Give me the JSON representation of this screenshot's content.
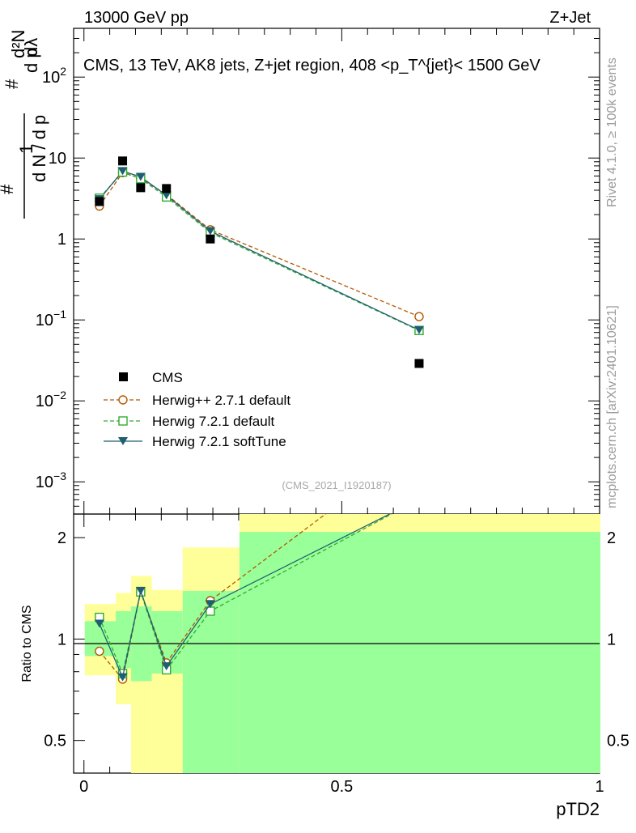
{
  "header": {
    "left": "13000 GeV pp",
    "right": "Z+Jet"
  },
  "side_labels": {
    "rivet": "Rivet 4.1.0, ≥ 100k events",
    "mcplots": "mcplots.cern.ch [arXiv:2401.10621]"
  },
  "colors": {
    "cms": "#000000",
    "herwigpp": "#b35900",
    "herwig721": "#33aa33",
    "softtune": "#1f5f6f",
    "band_inner": "#99ff99",
    "band_outer": "#ffff99"
  },
  "chart_data": [
    {
      "type": "line",
      "title": "CMS, 13 TeV, AK8 jets, Z+jet region, 408 <p_T^{jet}< 1500 GeV",
      "ylabel": "1/(dN/dp_T) d²N/(dp_T dλ)",
      "yscale": "log",
      "ylim": [
        0.0004,
        400
      ],
      "xlim": [
        -0.02,
        1.0
      ],
      "yticks": [
        {
          "value": 0.001,
          "base": "10",
          "exp": "−3"
        },
        {
          "value": 0.01,
          "base": "10",
          "exp": "−2"
        },
        {
          "value": 0.1,
          "base": "10",
          "exp": "−1"
        },
        {
          "value": 1,
          "label": "1"
        },
        {
          "value": 10,
          "label": "10"
        },
        {
          "value": 100,
          "base": "10",
          "exp": "2"
        }
      ],
      "watermark": "(CMS_2021_I1920187)",
      "x": [
        0.03,
        0.075,
        0.11,
        0.16,
        0.245,
        0.65
      ],
      "series": [
        {
          "name": "CMS",
          "marker": "square",
          "values": [
            2.9,
            9.2,
            4.3,
            4.2,
            1.0,
            0.029
          ]
        },
        {
          "name": "Herwig++ 2.7.1 default",
          "marker": "circle",
          "values": [
            2.55,
            6.6,
            5.6,
            3.55,
            1.3,
            0.11
          ]
        },
        {
          "name": "Herwig 7.2.1 default",
          "marker": "open-square",
          "values": [
            3.2,
            6.7,
            5.55,
            3.3,
            1.2,
            0.074
          ]
        },
        {
          "name": "Herwig 7.2.1 softTune",
          "marker": "triangle-down",
          "values": [
            3.1,
            6.9,
            5.85,
            3.45,
            1.25,
            0.075
          ]
        }
      ]
    },
    {
      "type": "line",
      "ylabel": "Ratio to CMS",
      "xlabel": "pTD2",
      "yscale": "log",
      "ylim": [
        0.4,
        2.35
      ],
      "xlim": [
        -0.02,
        1.0
      ],
      "yticks": [
        {
          "value": 0.5,
          "label": "0.5"
        },
        {
          "value": 1,
          "label": "1"
        },
        {
          "value": 2,
          "label": "2"
        }
      ],
      "xticks": [
        {
          "value": 0,
          "label": "0"
        },
        {
          "value": 0.5,
          "label": "0.5"
        },
        {
          "value": 1,
          "label": "1"
        }
      ],
      "bands": [
        {
          "x0": 0.0,
          "x1": 0.06,
          "inner": [
            0.89,
            1.13
          ],
          "outer": [
            0.78,
            1.27
          ]
        },
        {
          "x0": 0.06,
          "x1": 0.09,
          "inner": [
            0.82,
            1.21
          ],
          "outer": [
            0.64,
            1.37
          ]
        },
        {
          "x0": 0.09,
          "x1": 0.13,
          "inner": [
            0.75,
            1.25
          ],
          "outer": [
            0.4,
            1.54
          ]
        },
        {
          "x0": 0.13,
          "x1": 0.19,
          "inner": [
            0.79,
            1.21
          ],
          "outer": [
            0.4,
            1.4
          ]
        },
        {
          "x0": 0.19,
          "x1": 0.3,
          "inner": [
            0.4,
            1.39
          ],
          "outer": [
            0.4,
            1.87
          ]
        },
        {
          "x0": 0.3,
          "x1": 1.0,
          "inner": [
            0.4,
            2.08
          ],
          "outer": [
            0.4,
            2.35
          ]
        }
      ],
      "series": [
        {
          "name": "Herwig++ 2.7.1 default",
          "values": [
            0.92,
            0.76,
            1.38,
            0.85,
            1.3,
            3.8
          ]
        },
        {
          "name": "Herwig 7.2.1 default",
          "values": [
            1.16,
            0.79,
            1.38,
            0.81,
            1.21,
            2.6
          ]
        },
        {
          "name": "Herwig 7.2.1 softTune",
          "values": [
            1.11,
            0.77,
            1.39,
            0.83,
            1.27,
            2.6
          ]
        }
      ]
    }
  ]
}
